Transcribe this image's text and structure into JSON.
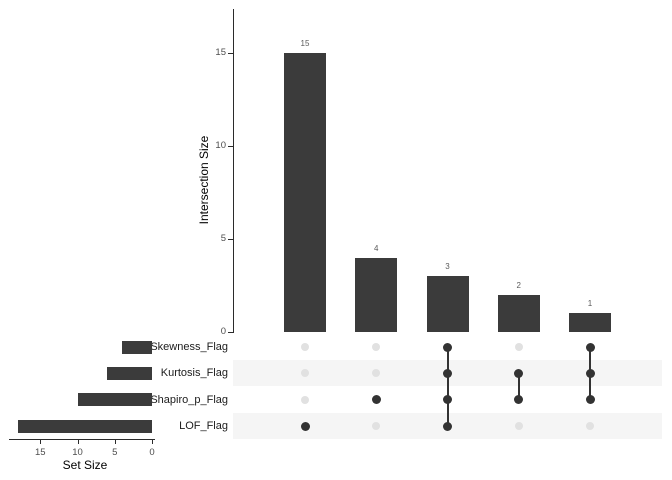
{
  "colors": {
    "background": "#ffffff",
    "bar": "#3b3b3b",
    "dot_active": "#333333",
    "dot_inactive": "#e1e1e1",
    "connector": "#333333",
    "band": "#f5f5f5",
    "axis": "#2b2b2b",
    "tick_label": "#4d4d4d",
    "bar_value_label": "#5a5a5a",
    "set_label": "#1c1c1c"
  },
  "chart_data": {
    "type": "bar",
    "subtype": "upset-plot",
    "intersection_bars": {
      "ylabel": "Intersection Size",
      "yticks": [
        0,
        5,
        10,
        15
      ],
      "ylim": [
        0,
        17.4
      ],
      "values": [
        15,
        4,
        3,
        2,
        1
      ],
      "value_labels": [
        "15",
        "4",
        "3",
        "2",
        "1"
      ],
      "grid": "off",
      "legend": "none"
    },
    "sets": [
      "Skewness_Flag",
      "Kurtosis_Flag",
      "Shapiro_p_Flag",
      "LOF_Flag"
    ],
    "set_sizes": [
      4,
      6,
      10,
      18
    ],
    "set_size_axis": {
      "xlabel": "Set Size",
      "ticks": [
        15,
        10,
        5,
        0
      ],
      "xlim": [
        19.4,
        0
      ]
    },
    "matrix": {
      "columns": [
        {
          "size": 15,
          "members": [
            "LOF_Flag"
          ]
        },
        {
          "size": 4,
          "members": [
            "Shapiro_p_Flag"
          ]
        },
        {
          "size": 3,
          "members": [
            "Skewness_Flag",
            "Kurtosis_Flag",
            "Shapiro_p_Flag",
            "LOF_Flag"
          ]
        },
        {
          "size": 2,
          "members": [
            "Kurtosis_Flag",
            "Shapiro_p_Flag"
          ]
        },
        {
          "size": 1,
          "members": [
            "Skewness_Flag",
            "Kurtosis_Flag",
            "Shapiro_p_Flag"
          ]
        }
      ],
      "shaded_rows": [
        "Kurtosis_Flag",
        "LOF_Flag"
      ]
    }
  }
}
